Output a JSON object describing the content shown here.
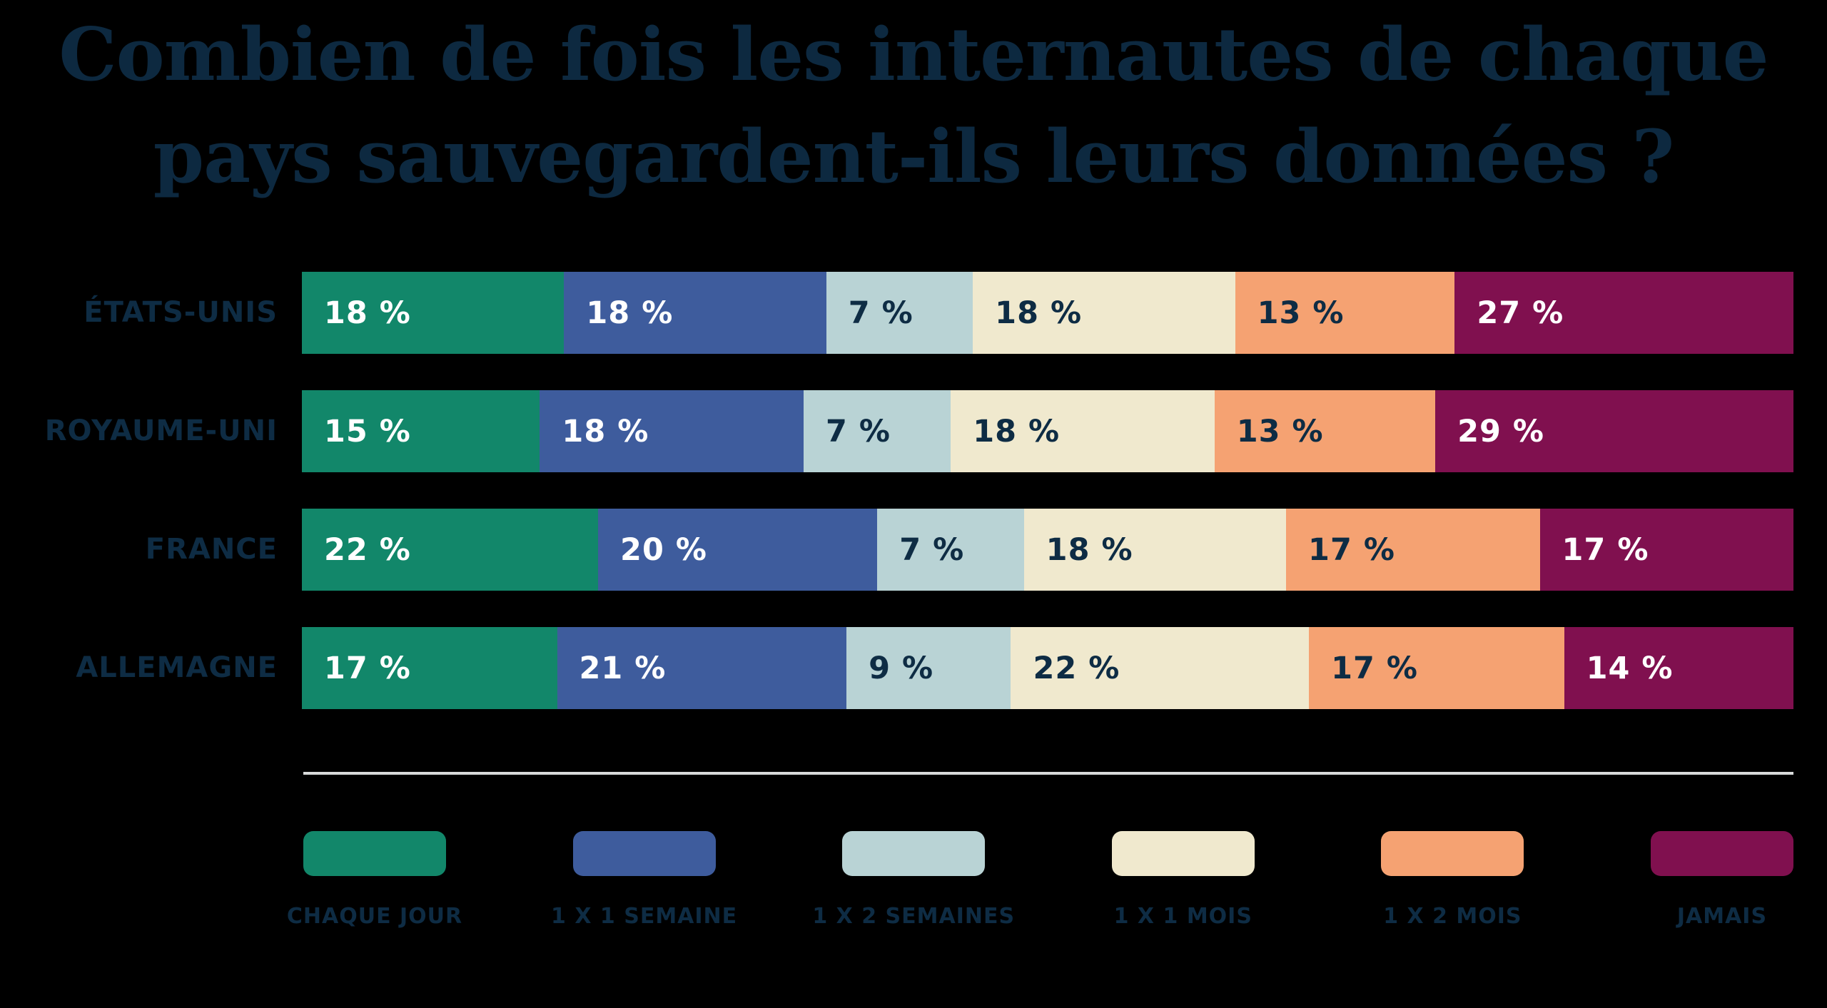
{
  "title": {
    "line1": "Combien de fois les internautes de chaque",
    "line2": "pays sauvegardent-ils leurs données ?"
  },
  "colors": {
    "background": "#000000",
    "title_text": "#0d2940",
    "label_text": "#0e2c44",
    "divider": "#d8dada",
    "white_text": "#ffffff"
  },
  "chart_data": {
    "type": "bar",
    "variant": "horizontal-stacked",
    "title": "Combien de fois les internautes de chaque pays sauvegardent-ils leurs données ?",
    "unit": "%",
    "categories": [
      {
        "label": "CHAQUE JOUR",
        "color": "#12876a",
        "text_color": "#ffffff"
      },
      {
        "label": "1 X 1 SEMAINE",
        "color": "#3e5c9d",
        "text_color": "#ffffff"
      },
      {
        "label": "1 X 2 SEMAINES",
        "color": "#b9d3d5",
        "text_color": "#0e2c44"
      },
      {
        "label": "1 X 1 MOIS",
        "color": "#f0e9ce",
        "text_color": "#0e2c44"
      },
      {
        "label": "1 X 2 MOIS",
        "color": "#f5a272",
        "text_color": "#0e2c44"
      },
      {
        "label": "JAMAIS",
        "color": "#80104f",
        "text_color": "#ffffff"
      }
    ],
    "rows": [
      {
        "country": "ÉTATS-UNIS",
        "values": [
          18,
          18,
          7,
          18,
          13,
          27
        ],
        "value_labels": [
          "18 %",
          "18 %",
          "7 %",
          "18 %",
          "13 %",
          "27 %"
        ]
      },
      {
        "country": "ROYAUME-UNI",
        "values": [
          15,
          18,
          7,
          18,
          13,
          29
        ],
        "value_labels": [
          "15 %",
          "18 %",
          "7 %",
          "18 %",
          "13 %",
          "29 %"
        ]
      },
      {
        "country": "FRANCE",
        "values": [
          22,
          20,
          7,
          18,
          17,
          17
        ],
        "value_labels": [
          "22 %",
          "20 %",
          "7 %",
          "18 %",
          "17 %",
          "17 %"
        ]
      },
      {
        "country": "ALLEMAGNE",
        "values": [
          17,
          21,
          9,
          22,
          17,
          14
        ],
        "value_labels": [
          "17 %",
          "21 %",
          "9 %",
          "22 %",
          "17 %",
          "14 %"
        ]
      }
    ],
    "legend_position": "bottom",
    "grid": false,
    "axis_labels_hidden": true
  }
}
